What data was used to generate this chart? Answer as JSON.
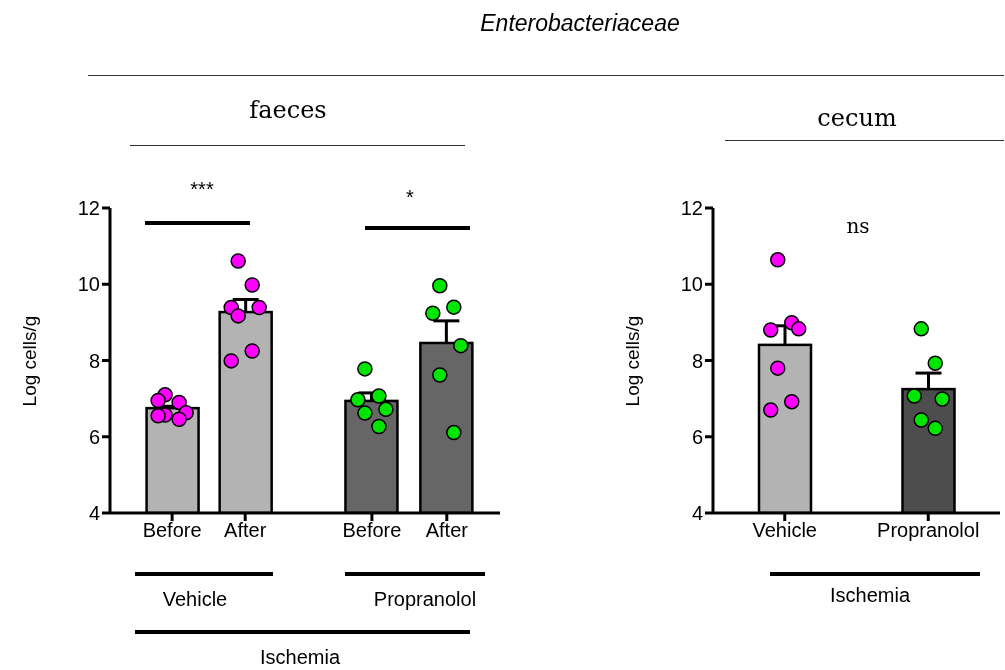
{
  "chart_data": [
    {
      "type": "bar",
      "subtitle": "faeces",
      "ylabel": "Log cells/g",
      "categories": [
        "Before",
        "After"
      ],
      "series": [
        {
          "colors": [
            "#b3b3b3",
            "#b3b3b3"
          ],
          "values": [
            6.75,
            9.27
          ],
          "errors": [
            [
              6.75,
              6.8
            ],
            [
              9.27,
              9.6
            ]
          ]
        },
        {
          "type": "scatter",
          "color": "#ff00ff",
          "x": [
            "Before",
            "Before",
            "Before",
            "Before",
            "Before",
            "Before",
            "Before",
            "After",
            "After",
            "After",
            "After",
            "After",
            "After",
            "After"
          ],
          "values": [
            7.1,
            6.9,
            6.95,
            6.63,
            6.57,
            6.46,
            6.55,
            10.61,
            9.98,
            9.39,
            9.39,
            9.17,
            8.25,
            7.99
          ]
        }
      ],
      "ylim": [
        4,
        12
      ],
      "yticks": [
        4,
        6,
        8,
        10,
        12
      ],
      "marker": "circle",
      "annotations": [
        "***",
        "Vehicle"
      ]
    },
    {
      "type": "bar",
      "title": "Enterobacteriaceae",
      "categories": [
        "Before",
        "After"
      ],
      "series": [
        {
          "colors": [
            "#666666",
            "#666666"
          ],
          "values": [
            6.94,
            8.46
          ],
          "errors": [
            [
              6.94,
              7.15
            ],
            [
              8.46,
              9.04
            ]
          ]
        },
        {
          "type": "scatter",
          "color": "#00e600",
          "x": [
            "Before",
            "Before",
            "Before",
            "Before",
            "Before",
            "Before",
            "After",
            "After",
            "After",
            "After",
            "After",
            "After"
          ],
          "values": [
            7.78,
            7.07,
            6.97,
            6.72,
            6.62,
            6.27,
            9.96,
            9.4,
            9.24,
            8.39,
            7.62,
            6.11
          ]
        }
      ],
      "ylim": [
        4,
        12
      ],
      "tick_labels": "x",
      "marker": "circle",
      "annotations": [
        "*",
        "Propranolol",
        "Ischemia"
      ]
    },
    {
      "type": "bar",
      "subtitle": "cecum",
      "ylabel": "Log cells/g",
      "categories": [
        "Vehicle",
        "Propranolol"
      ],
      "series": [
        {
          "colors": [
            "#b3b3b3",
            "#4d4d4d"
          ],
          "values": [
            8.41,
            7.25
          ],
          "errors": [
            [
              8.41,
              8.91
            ],
            [
              7.25,
              7.67
            ]
          ]
        },
        {
          "type": "scatter",
          "color": "#ff00ff",
          "x": [
            "Vehicle",
            "Vehicle",
            "Vehicle",
            "Vehicle",
            "Vehicle",
            "Vehicle",
            "Vehicle"
          ],
          "values": [
            10.64,
            8.99,
            8.8,
            8.83,
            7.8,
            6.92,
            6.7
          ]
        },
        {
          "type": "scatter",
          "color": "#00e600",
          "x": [
            "Propranolol",
            "Propranolol",
            "Propranolol",
            "Propranolol",
            "Propranolol",
            "Propranolol"
          ],
          "values": [
            8.83,
            7.93,
            7.07,
            6.99,
            6.44,
            6.22
          ]
        }
      ],
      "ylim": [
        4,
        12
      ],
      "yticks": [
        4,
        6,
        8,
        10,
        12
      ],
      "marker": "circle",
      "annotations": [
        "ns",
        "Ischemia"
      ]
    }
  ]
}
